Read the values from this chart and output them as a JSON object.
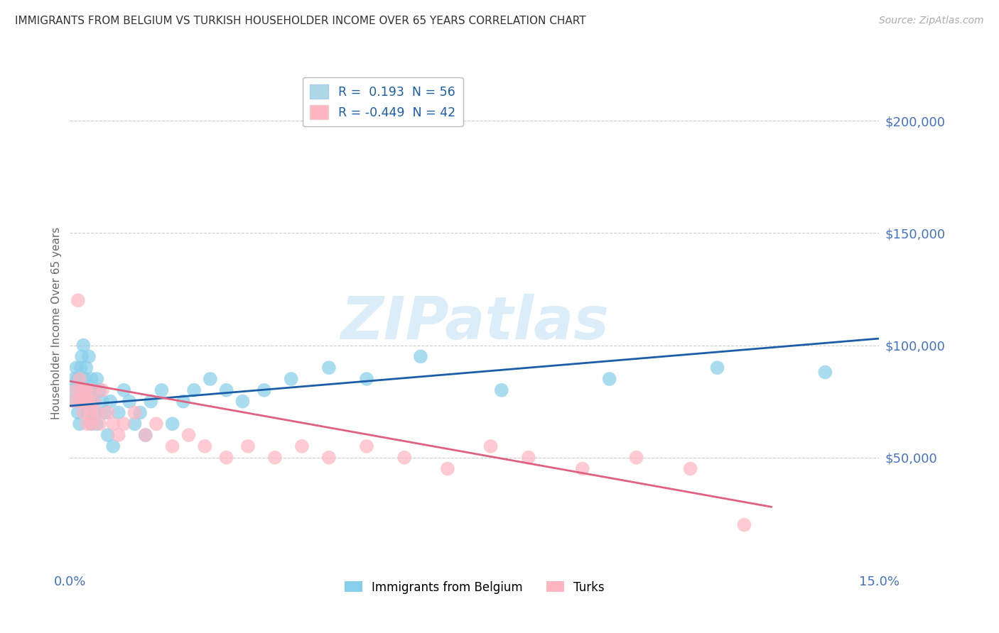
{
  "title": "IMMIGRANTS FROM BELGIUM VS TURKISH HOUSEHOLDER INCOME OVER 65 YEARS CORRELATION CHART",
  "source": "Source: ZipAtlas.com",
  "ylabel": "Householder Income Over 65 years",
  "xlim": [
    0.0,
    15.0
  ],
  "ylim": [
    0,
    220000
  ],
  "yticks": [
    0,
    50000,
    100000,
    150000,
    200000
  ],
  "ytick_labels": [
    "",
    "$50,000",
    "$100,000",
    "$150,000",
    "$200,000"
  ],
  "watermark": "ZIPatlas",
  "legend_entries": [
    {
      "label": "R =  0.193  N = 56",
      "color": "#add8e6"
    },
    {
      "label": "R = -0.449  N = 42",
      "color": "#ffb6c1"
    }
  ],
  "belgium_scatter_x": [
    0.05,
    0.08,
    0.1,
    0.12,
    0.15,
    0.15,
    0.18,
    0.2,
    0.2,
    0.22,
    0.22,
    0.25,
    0.25,
    0.28,
    0.3,
    0.3,
    0.32,
    0.35,
    0.35,
    0.38,
    0.4,
    0.4,
    0.42,
    0.45,
    0.48,
    0.5,
    0.5,
    0.55,
    0.6,
    0.65,
    0.7,
    0.75,
    0.8,
    0.9,
    1.0,
    1.1,
    1.2,
    1.3,
    1.4,
    1.5,
    1.7,
    1.9,
    2.1,
    2.3,
    2.6,
    2.9,
    3.2,
    3.6,
    4.1,
    4.8,
    5.5,
    6.5,
    8.0,
    10.0,
    12.0,
    14.0
  ],
  "belgium_scatter_y": [
    80000,
    85000,
    75000,
    90000,
    70000,
    85000,
    65000,
    80000,
    90000,
    75000,
    95000,
    80000,
    100000,
    85000,
    75000,
    90000,
    70000,
    80000,
    95000,
    75000,
    85000,
    65000,
    80000,
    75000,
    70000,
    85000,
    65000,
    80000,
    75000,
    70000,
    60000,
    75000,
    55000,
    70000,
    80000,
    75000,
    65000,
    70000,
    60000,
    75000,
    80000,
    65000,
    75000,
    80000,
    85000,
    80000,
    75000,
    80000,
    85000,
    90000,
    85000,
    95000,
    80000,
    85000,
    90000,
    88000
  ],
  "turk_scatter_x": [
    0.08,
    0.12,
    0.15,
    0.18,
    0.2,
    0.22,
    0.25,
    0.28,
    0.3,
    0.32,
    0.35,
    0.38,
    0.4,
    0.42,
    0.45,
    0.5,
    0.55,
    0.6,
    0.7,
    0.8,
    0.9,
    1.0,
    1.2,
    1.4,
    1.6,
    1.9,
    2.2,
    2.5,
    2.9,
    3.3,
    3.8,
    4.3,
    4.8,
    5.5,
    6.2,
    7.0,
    7.8,
    8.5,
    9.5,
    10.5,
    11.5,
    12.5
  ],
  "turk_scatter_y": [
    75000,
    80000,
    120000,
    85000,
    75000,
    80000,
    70000,
    75000,
    80000,
    65000,
    75000,
    70000,
    65000,
    80000,
    75000,
    70000,
    65000,
    80000,
    70000,
    65000,
    60000,
    65000,
    70000,
    60000,
    65000,
    55000,
    60000,
    55000,
    50000,
    55000,
    50000,
    55000,
    50000,
    55000,
    50000,
    45000,
    55000,
    50000,
    45000,
    50000,
    45000,
    20000
  ],
  "belgium_line_x": [
    0.0,
    15.0
  ],
  "belgium_line_y": [
    73000,
    103000
  ],
  "turk_line_x": [
    0.0,
    13.0
  ],
  "turk_line_y": [
    84000,
    28000
  ],
  "scatter_color_belgium": "#87CEEB",
  "scatter_color_turk": "#FFB6C1",
  "line_color_belgium": "#1a5ea8",
  "line_color_turk": "#e06080",
  "bg_color": "#ffffff",
  "grid_color": "#cccccc",
  "title_color": "#333333",
  "axis_label_color": "#4472c4",
  "watermark_color": "#daedf8",
  "watermark_fontsize": 60,
  "bottom_legend_labels": [
    "Immigrants from Belgium",
    "Turks"
  ]
}
